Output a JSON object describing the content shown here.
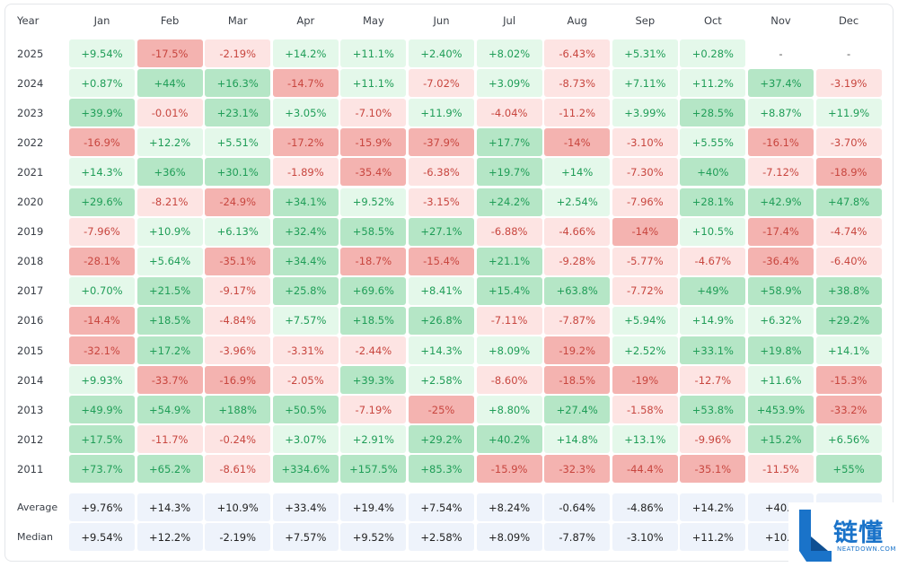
{
  "chart_data": {
    "type": "table",
    "corner_label": "Year",
    "columns": [
      "Jan",
      "Feb",
      "Mar",
      "Apr",
      "May",
      "Jun",
      "Jul",
      "Aug",
      "Sep",
      "Oct",
      "Nov",
      "Dec"
    ],
    "rows": [
      {
        "year": "2025",
        "values": [
          "+9.54%",
          "-17.5%",
          "-2.19%",
          "+14.2%",
          "+11.1%",
          "+2.40%",
          "+8.02%",
          "-6.43%",
          "+5.31%",
          "+0.28%",
          "-",
          "-"
        ]
      },
      {
        "year": "2024",
        "values": [
          "+0.87%",
          "+44%",
          "+16.3%",
          "-14.7%",
          "+11.1%",
          "-7.02%",
          "+3.09%",
          "-8.73%",
          "+7.11%",
          "+11.2%",
          "+37.4%",
          "-3.19%"
        ]
      },
      {
        "year": "2023",
        "values": [
          "+39.9%",
          "-0.01%",
          "+23.1%",
          "+3.05%",
          "-7.10%",
          "+11.9%",
          "-4.04%",
          "-11.2%",
          "+3.99%",
          "+28.5%",
          "+8.87%",
          "+11.9%"
        ]
      },
      {
        "year": "2022",
        "values": [
          "-16.9%",
          "+12.2%",
          "+5.51%",
          "-17.2%",
          "-15.9%",
          "-37.9%",
          "+17.7%",
          "-14%",
          "-3.10%",
          "+5.55%",
          "-16.1%",
          "-3.70%"
        ]
      },
      {
        "year": "2021",
        "values": [
          "+14.3%",
          "+36%",
          "+30.1%",
          "-1.89%",
          "-35.4%",
          "-6.38%",
          "+19.7%",
          "+14%",
          "-7.30%",
          "+40%",
          "-7.12%",
          "-18.9%"
        ]
      },
      {
        "year": "2020",
        "values": [
          "+29.6%",
          "-8.21%",
          "-24.9%",
          "+34.1%",
          "+9.52%",
          "-3.15%",
          "+24.2%",
          "+2.54%",
          "-7.96%",
          "+28.1%",
          "+42.9%",
          "+47.8%"
        ]
      },
      {
        "year": "2019",
        "values": [
          "-7.96%",
          "+10.9%",
          "+6.13%",
          "+32.4%",
          "+58.5%",
          "+27.1%",
          "-6.88%",
          "-4.66%",
          "-14%",
          "+10.5%",
          "-17.4%",
          "-4.74%"
        ]
      },
      {
        "year": "2018",
        "values": [
          "-28.1%",
          "+5.64%",
          "-35.1%",
          "+34.4%",
          "-18.7%",
          "-15.4%",
          "+21.1%",
          "-9.28%",
          "-5.77%",
          "-4.67%",
          "-36.4%",
          "-6.40%"
        ]
      },
      {
        "year": "2017",
        "values": [
          "+0.70%",
          "+21.5%",
          "-9.17%",
          "+25.8%",
          "+69.6%",
          "+8.41%",
          "+15.4%",
          "+63.8%",
          "-7.72%",
          "+49%",
          "+58.9%",
          "+38.8%"
        ]
      },
      {
        "year": "2016",
        "values": [
          "-14.4%",
          "+18.5%",
          "-4.84%",
          "+7.57%",
          "+18.5%",
          "+26.8%",
          "-7.11%",
          "-7.87%",
          "+5.94%",
          "+14.9%",
          "+6.32%",
          "+29.2%"
        ]
      },
      {
        "year": "2015",
        "values": [
          "-32.1%",
          "+17.2%",
          "-3.96%",
          "-3.31%",
          "-2.44%",
          "+14.3%",
          "+8.09%",
          "-19.2%",
          "+2.52%",
          "+33.1%",
          "+19.8%",
          "+14.1%"
        ]
      },
      {
        "year": "2014",
        "values": [
          "+9.93%",
          "-33.7%",
          "-16.9%",
          "-2.05%",
          "+39.3%",
          "+2.58%",
          "-8.60%",
          "-18.5%",
          "-19%",
          "-12.7%",
          "+11.6%",
          "-15.3%"
        ]
      },
      {
        "year": "2013",
        "values": [
          "+49.9%",
          "+54.9%",
          "+188%",
          "+50.5%",
          "-7.19%",
          "-25%",
          "+8.80%",
          "+27.4%",
          "-1.58%",
          "+53.8%",
          "+453.9%",
          "-33.2%"
        ]
      },
      {
        "year": "2012",
        "values": [
          "+17.5%",
          "-11.7%",
          "-0.24%",
          "+3.07%",
          "+2.91%",
          "+29.2%",
          "+40.2%",
          "+14.8%",
          "+13.1%",
          "-9.96%",
          "+15.2%",
          "+6.56%"
        ]
      },
      {
        "year": "2011",
        "values": [
          "+73.7%",
          "+65.2%",
          "-8.61%",
          "+334.6%",
          "+157.5%",
          "+85.3%",
          "-15.9%",
          "-32.3%",
          "-44.4%",
          "-35.1%",
          "-11.5%",
          "+55%"
        ]
      }
    ],
    "stats": [
      {
        "label": "Average",
        "values": [
          "+9.76%",
          "+14.3%",
          "+10.9%",
          "+33.4%",
          "+19.4%",
          "+7.54%",
          "+8.24%",
          "-0.64%",
          "-4.86%",
          "+14.2%",
          "+40.5",
          ""
        ]
      },
      {
        "label": "Median",
        "values": [
          "+9.54%",
          "+12.2%",
          "-2.19%",
          "+7.57%",
          "+9.52%",
          "+2.58%",
          "+8.09%",
          "-7.87%",
          "-3.10%",
          "+11.2%",
          "+10.3",
          ""
        ]
      }
    ],
    "colors": {
      "positive_text": "#1f9d57",
      "negative_text": "#c8463f",
      "stat_background": "#eef3fb",
      "positive_strong": "#b5e6c6",
      "positive_light": "#e4f8ea",
      "negative_strong": "#f4b3b0",
      "negative_light": "#fde4e3"
    }
  },
  "watermark": {
    "chinese": "链懂",
    "english": "NEATDOWN.COM"
  }
}
